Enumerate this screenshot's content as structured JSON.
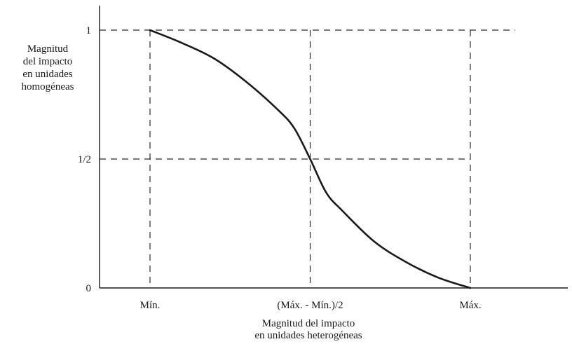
{
  "chart_data": {
    "type": "line",
    "ylabel_lines": [
      "Magnitud",
      "del impacto",
      "en unidades",
      "homogéneas"
    ],
    "xlabel_lines": [
      "Magnitud del impacto",
      "en unidades heterogéneas"
    ],
    "y_ticks": [
      {
        "value": 0,
        "label": "0"
      },
      {
        "value": 0.5,
        "label": "1/2"
      },
      {
        "value": 1,
        "label": "1"
      }
    ],
    "x_ticks": [
      {
        "value": 0,
        "label": "Mín."
      },
      {
        "value": 0.5,
        "label": "(Máx. - Mín.)/2"
      },
      {
        "value": 1,
        "label": "Máx."
      }
    ],
    "series": [
      {
        "x": [
          0,
          0.1,
          0.2,
          0.3,
          0.4,
          0.45,
          0.5,
          0.55,
          0.6,
          0.7,
          0.8,
          0.9,
          1
        ],
        "y": [
          1,
          0.95,
          0.89,
          0.8,
          0.69,
          0.62,
          0.5,
          0.37,
          0.3,
          0.18,
          0.1,
          0.04,
          0
        ]
      }
    ],
    "xlim": [
      0,
      1
    ],
    "ylim": [
      0,
      1
    ],
    "grid": "dashed reference lines at tick values",
    "colors": {
      "curve": "#1a1a1a",
      "axis": "#1a1a1a",
      "guides": "#2a2a2a"
    }
  }
}
